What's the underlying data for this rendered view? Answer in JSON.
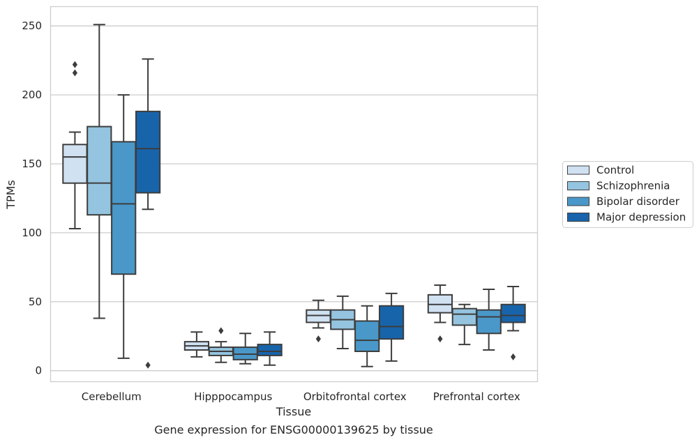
{
  "chart_data": {
    "type": "boxplot",
    "title": "",
    "caption": "Gene expression for ENSG00000139625 by tissue",
    "xlabel": "Tissue",
    "ylabel": "TPMs",
    "ylim": [
      -8,
      264
    ],
    "yticks": [
      0,
      50,
      100,
      150,
      200,
      250
    ],
    "grid": "horizontal",
    "legend_position": "right",
    "categories": [
      "Cerebellum",
      "Hipppocampus",
      "Orbitofrontal cortex",
      "Prefrontal cortex"
    ],
    "series": [
      {
        "name": "Control",
        "color": "#d0e1f2",
        "boxes": [
          {
            "whisker_low": 103,
            "q1": 136,
            "median": 155,
            "q3": 164,
            "whisker_high": 173,
            "outliers": [
              222,
              216
            ]
          },
          {
            "whisker_low": 10,
            "q1": 15,
            "median": 18,
            "q3": 21,
            "whisker_high": 28,
            "outliers": []
          },
          {
            "whisker_low": 31,
            "q1": 35,
            "median": 40,
            "q3": 44,
            "whisker_high": 51,
            "outliers": [
              23
            ]
          },
          {
            "whisker_low": 35,
            "q1": 42,
            "median": 48,
            "q3": 55,
            "whisker_high": 62,
            "outliers": [
              23
            ]
          }
        ]
      },
      {
        "name": "Schizophrenia",
        "color": "#94c4df",
        "boxes": [
          {
            "whisker_low": 38,
            "q1": 113,
            "median": 136,
            "q3": 177,
            "whisker_high": 251,
            "outliers": []
          },
          {
            "whisker_low": 6,
            "q1": 11,
            "median": 14,
            "q3": 17,
            "whisker_high": 21,
            "outliers": [
              29
            ]
          },
          {
            "whisker_low": 16,
            "q1": 30,
            "median": 37,
            "q3": 44,
            "whisker_high": 54,
            "outliers": []
          },
          {
            "whisker_low": 19,
            "q1": 33,
            "median": 41,
            "q3": 45,
            "whisker_high": 48,
            "outliers": []
          }
        ]
      },
      {
        "name": "Bipolar disorder",
        "color": "#4a98c9",
        "boxes": [
          {
            "whisker_low": 9,
            "q1": 70,
            "median": 121,
            "q3": 166,
            "whisker_high": 200,
            "outliers": []
          },
          {
            "whisker_low": 5,
            "q1": 8,
            "median": 12,
            "q3": 17,
            "whisker_high": 27,
            "outliers": []
          },
          {
            "whisker_low": 3,
            "q1": 14,
            "median": 22,
            "q3": 36,
            "whisker_high": 47,
            "outliers": []
          },
          {
            "whisker_low": 15,
            "q1": 27,
            "median": 39,
            "q3": 44,
            "whisker_high": 59,
            "outliers": []
          }
        ]
      },
      {
        "name": "Major depression",
        "color": "#1764ab",
        "boxes": [
          {
            "whisker_low": 117,
            "q1": 129,
            "median": 161,
            "q3": 188,
            "whisker_high": 226,
            "outliers": [
              4
            ]
          },
          {
            "whisker_low": 4,
            "q1": 11,
            "median": 14,
            "q3": 19,
            "whisker_high": 28,
            "outliers": []
          },
          {
            "whisker_low": 7,
            "q1": 23,
            "median": 32,
            "q3": 47,
            "whisker_high": 56,
            "outliers": []
          },
          {
            "whisker_low": 29,
            "q1": 35,
            "median": 40,
            "q3": 48,
            "whisker_high": 61,
            "outliers": [
              10
            ]
          }
        ]
      }
    ]
  }
}
